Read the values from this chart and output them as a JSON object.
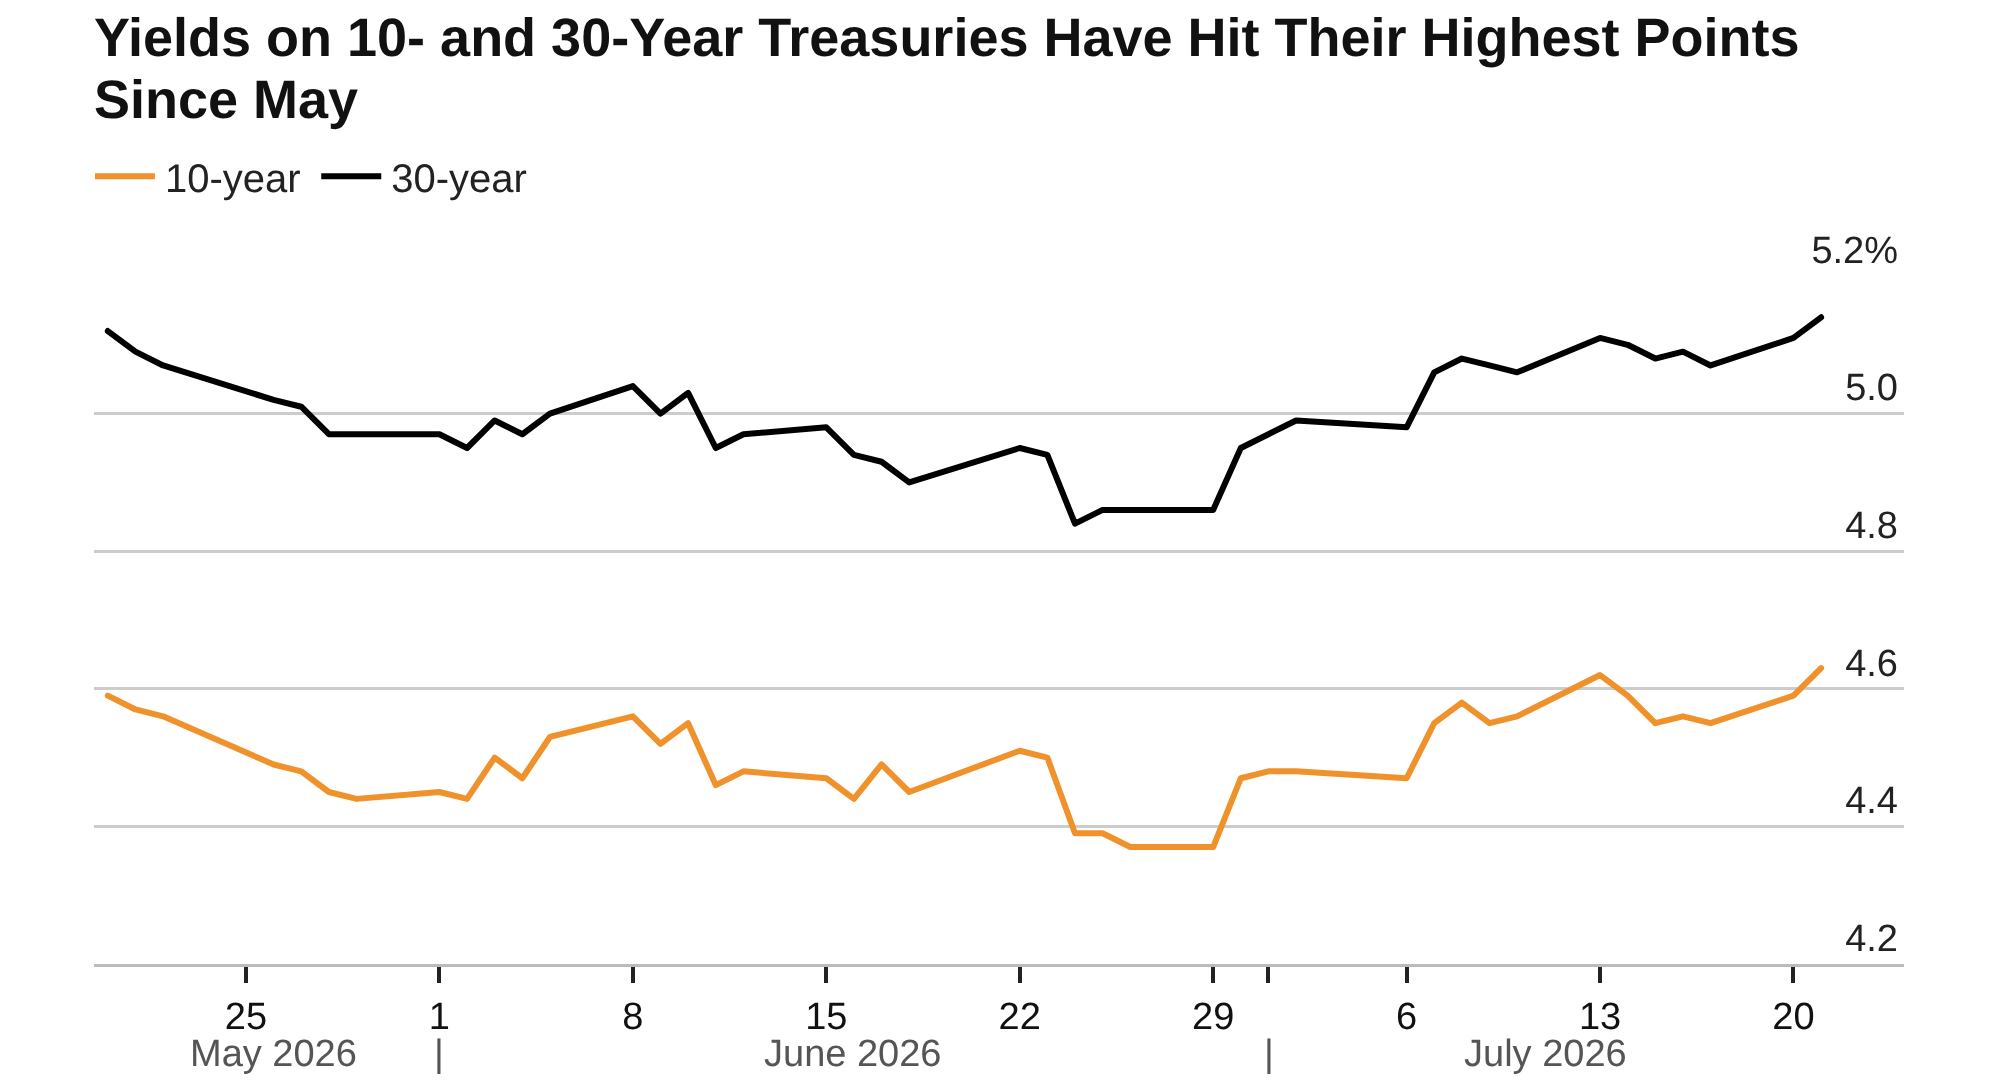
{
  "chart_data": {
    "type": "line",
    "title": "Yields on 10- and 30-Year Treasuries Have Hit Their Highest Points Since May",
    "x": [
      "2026-05-20",
      "2026-05-21",
      "2026-05-22",
      "2026-05-26",
      "2026-05-27",
      "2026-05-28",
      "2026-05-29",
      "2026-06-01",
      "2026-06-02",
      "2026-06-03",
      "2026-06-04",
      "2026-06-05",
      "2026-06-08",
      "2026-06-09",
      "2026-06-10",
      "2026-06-11",
      "2026-06-12",
      "2026-06-15",
      "2026-06-16",
      "2026-06-17",
      "2026-06-18",
      "2026-06-22",
      "2026-06-23",
      "2026-06-24",
      "2026-06-25",
      "2026-06-26",
      "2026-06-29",
      "2026-06-30",
      "2026-07-01",
      "2026-07-02",
      "2026-07-06",
      "2026-07-07",
      "2026-07-08",
      "2026-07-09",
      "2026-07-10",
      "2026-07-13",
      "2026-07-14",
      "2026-07-15",
      "2026-07-16",
      "2026-07-17",
      "2026-07-20",
      "2026-07-21"
    ],
    "series": [
      {
        "name": "10-year",
        "color": "#f0922b",
        "values": [
          4.59,
          4.57,
          4.56,
          4.49,
          4.48,
          4.45,
          4.44,
          4.45,
          4.44,
          4.5,
          4.47,
          4.53,
          4.56,
          4.52,
          4.55,
          4.46,
          4.48,
          4.47,
          4.44,
          4.49,
          4.45,
          4.51,
          4.5,
          4.39,
          4.39,
          4.37,
          4.37,
          4.47,
          4.48,
          4.48,
          4.47,
          4.55,
          4.58,
          4.55,
          4.56,
          4.62,
          4.59,
          4.55,
          4.56,
          4.55,
          4.59,
          4.63
        ]
      },
      {
        "name": "30-year",
        "color": "#000000",
        "values": [
          5.12,
          5.09,
          5.07,
          5.02,
          5.01,
          4.97,
          4.97,
          4.97,
          4.95,
          4.99,
          4.97,
          5.0,
          5.04,
          5.0,
          5.03,
          4.95,
          4.97,
          4.98,
          4.94,
          4.93,
          4.9,
          4.95,
          4.94,
          4.84,
          4.86,
          4.86,
          4.86,
          4.95,
          4.97,
          4.99,
          4.98,
          5.06,
          5.08,
          5.07,
          5.06,
          5.11,
          5.1,
          5.08,
          5.09,
          5.07,
          5.11,
          5.14
        ]
      }
    ],
    "xlim": [
      "2026-05-19T12:00",
      "2026-07-24"
    ],
    "xticks": [
      {
        "value": "2026-05-25",
        "label": "25"
      },
      {
        "value": "2026-06-01",
        "label": "1"
      },
      {
        "value": "2026-06-08",
        "label": "8"
      },
      {
        "value": "2026-06-15",
        "label": "15"
      },
      {
        "value": "2026-06-22",
        "label": "22"
      },
      {
        "value": "2026-06-29",
        "label": "29"
      },
      {
        "value": "2026-07-01",
        "label": null
      },
      {
        "value": "2026-07-06",
        "label": "6"
      },
      {
        "value": "2026-07-13",
        "label": "13"
      },
      {
        "value": "2026-07-20",
        "label": "20"
      }
    ],
    "x2lim": [
      "2026-05-19T12:00",
      "2026-07-24"
    ],
    "x2ticks": [
      {
        "value": "2026-05-26",
        "label": "May 2026"
      },
      {
        "value": "2026-06-01",
        "label": "|"
      },
      {
        "value": "2026-06-16",
        "label": "June 2026"
      },
      {
        "value": "2026-07-01",
        "label": "|"
      },
      {
        "value": "2026-07-11",
        "label": "July 2026"
      }
    ],
    "ylim": [
      4.2,
      5.2
    ],
    "yticks": [
      4.2,
      4.4,
      4.6,
      4.8,
      {
        "value": 5.0,
        "label": "5.0"
      },
      {
        "value": 5.2,
        "label": "5.2%"
      }
    ],
    "grid": "y",
    "legend": "top left"
  }
}
